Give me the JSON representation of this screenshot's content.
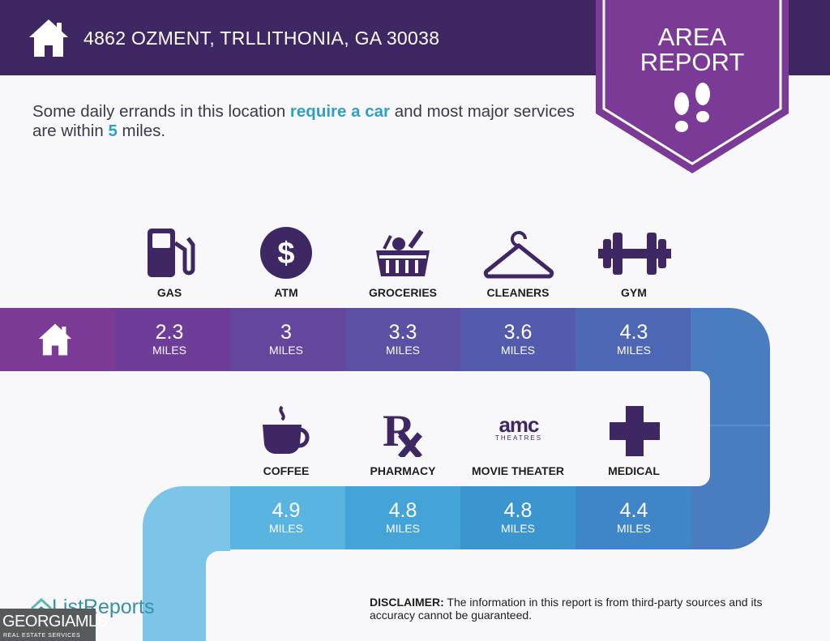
{
  "header": {
    "address": "4862 OZMENT, TRLLITHONIA, GA 30038"
  },
  "badge": {
    "line1": "AREA",
    "line2": "REPORT"
  },
  "intro": {
    "part1": "Some daily errands in this location ",
    "highlight1": "require a car",
    "part2": " and most major services are within ",
    "highlight2": "5",
    "part3": " miles."
  },
  "services_row1": [
    {
      "label": "GAS",
      "distance": "2.3",
      "unit": "MILES",
      "icon": "gas-pump-icon"
    },
    {
      "label": "ATM",
      "distance": "3",
      "unit": "MILES",
      "icon": "dollar-icon"
    },
    {
      "label": "GROCERIES",
      "distance": "3.3",
      "unit": "MILES",
      "icon": "grocery-basket-icon"
    },
    {
      "label": "CLEANERS",
      "distance": "3.6",
      "unit": "MILES",
      "icon": "hanger-icon"
    },
    {
      "label": "GYM",
      "distance": "4.3",
      "unit": "MILES",
      "icon": "dumbbell-icon"
    }
  ],
  "services_row2": [
    {
      "label": "COFFEE",
      "distance": "4.9",
      "unit": "MILES",
      "icon": "coffee-cup-icon"
    },
    {
      "label": "PHARMACY",
      "distance": "4.8",
      "unit": "MILES",
      "icon": "rx-icon"
    },
    {
      "label": "MOVIE THEATER",
      "distance": "4.8",
      "unit": "MILES",
      "icon": "amc-logo-icon"
    },
    {
      "label": "MEDICAL",
      "distance": "4.4",
      "unit": "MILES",
      "icon": "medical-cross-icon"
    }
  ],
  "amc_logo": {
    "line1": "amc",
    "line2": "THEATRES"
  },
  "footer": {
    "logo_text": "ListReports",
    "mls_line1": "GEORGIAMLS",
    "mls_line2": "REAL ESTATE SERVICES",
    "disclaimer_label": "DISCLAIMER:",
    "disclaimer_text": " The information in this report is from third-party sources and its accuracy cannot be guaranteed."
  },
  "colors": {
    "header_bg": "#3f2763",
    "badge": "#7b3a96",
    "icon": "#3f2763",
    "highlight": "#2ea0c8"
  }
}
